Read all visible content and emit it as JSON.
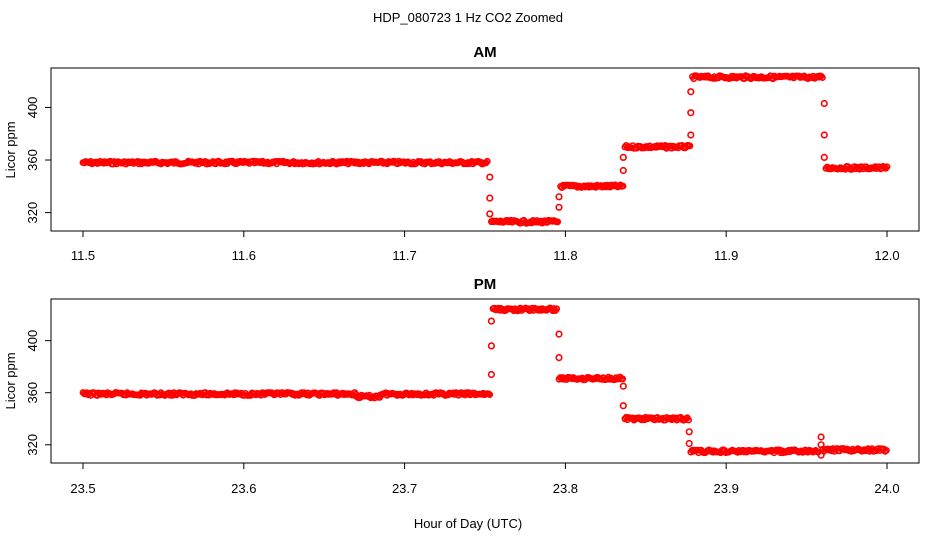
{
  "chart_data": {
    "title": "HDP_080723  1 Hz CO2 Zoomed",
    "xlabel": "Hour of Day (UTC)",
    "colors": {
      "points": "#ff0000",
      "axes": "#000000",
      "background": "#ffffff"
    },
    "marker": "open-circle",
    "panels": [
      {
        "type": "scatter",
        "title": "AM",
        "ylabel": "Licor ppm",
        "xlim": [
          11.5,
          12.0
        ],
        "ylim": [
          306,
          430
        ],
        "xticks": [
          {
            "v": 11.5,
            "label": "11.5"
          },
          {
            "v": 11.6,
            "label": "11.6"
          },
          {
            "v": 11.7,
            "label": "11.7"
          },
          {
            "v": 11.8,
            "label": "11.8"
          },
          {
            "v": 11.9,
            "label": "11.9"
          },
          {
            "v": 12.0,
            "label": "12.0"
          }
        ],
        "yticks": [
          {
            "v": 320,
            "label": "320"
          },
          {
            "v": 360,
            "label": "360"
          },
          {
            "v": 400,
            "label": "400"
          }
        ],
        "segments": [
          {
            "x0": 11.5,
            "x1": 11.752,
            "y": 358
          },
          {
            "x0": 11.754,
            "x1": 11.796,
            "y": 313
          },
          {
            "x0": 11.797,
            "x1": 11.836,
            "y": 340
          },
          {
            "x0": 11.837,
            "x1": 11.878,
            "y": 370
          },
          {
            "x0": 11.879,
            "x1": 11.96,
            "y": 423
          },
          {
            "x0": 11.962,
            "x1": 12.0,
            "y": 354
          }
        ],
        "transitions": [
          {
            "x": 11.753,
            "y": [
              347,
              331,
              319
            ]
          },
          {
            "x": 11.796,
            "y": [
              324,
              332
            ]
          },
          {
            "x": 11.836,
            "y": [
              352,
              362
            ]
          },
          {
            "x": 11.878,
            "y": [
              379,
              396,
              412
            ]
          },
          {
            "x": 11.961,
            "y": [
              403,
              379,
              362
            ]
          }
        ]
      },
      {
        "type": "scatter",
        "title": "PM",
        "ylabel": "Licor ppm",
        "xlim": [
          23.5,
          24.0
        ],
        "ylim": [
          306,
          432
        ],
        "xticks": [
          {
            "v": 23.5,
            "label": "23.5"
          },
          {
            "v": 23.6,
            "label": "23.6"
          },
          {
            "v": 23.7,
            "label": "23.7"
          },
          {
            "v": 23.8,
            "label": "23.8"
          },
          {
            "v": 23.9,
            "label": "23.9"
          },
          {
            "v": 24.0,
            "label": "24.0"
          }
        ],
        "yticks": [
          {
            "v": 320,
            "label": "320"
          },
          {
            "v": 360,
            "label": "360"
          },
          {
            "v": 400,
            "label": "400"
          }
        ],
        "segments": [
          {
            "x0": 23.5,
            "x1": 23.67,
            "y": 359
          },
          {
            "x0": 23.67,
            "x1": 23.685,
            "y": 357
          },
          {
            "x0": 23.685,
            "x1": 23.753,
            "y": 359
          },
          {
            "x0": 23.755,
            "x1": 23.795,
            "y": 424
          },
          {
            "x0": 23.796,
            "x1": 23.836,
            "y": 371
          },
          {
            "x0": 23.837,
            "x1": 23.877,
            "y": 340
          },
          {
            "x0": 23.878,
            "x1": 23.958,
            "y": 315
          },
          {
            "x0": 23.96,
            "x1": 24.0,
            "y": 316
          }
        ],
        "transitions": [
          {
            "x": 23.754,
            "y": [
              374,
              396,
              415
            ]
          },
          {
            "x": 23.796,
            "y": [
              405,
              387
            ]
          },
          {
            "x": 23.836,
            "y": [
              365,
              350
            ]
          },
          {
            "x": 23.877,
            "y": [
              330,
              321
            ]
          },
          {
            "x": 23.959,
            "y": [
              326,
              312,
              320
            ]
          }
        ]
      }
    ]
  }
}
